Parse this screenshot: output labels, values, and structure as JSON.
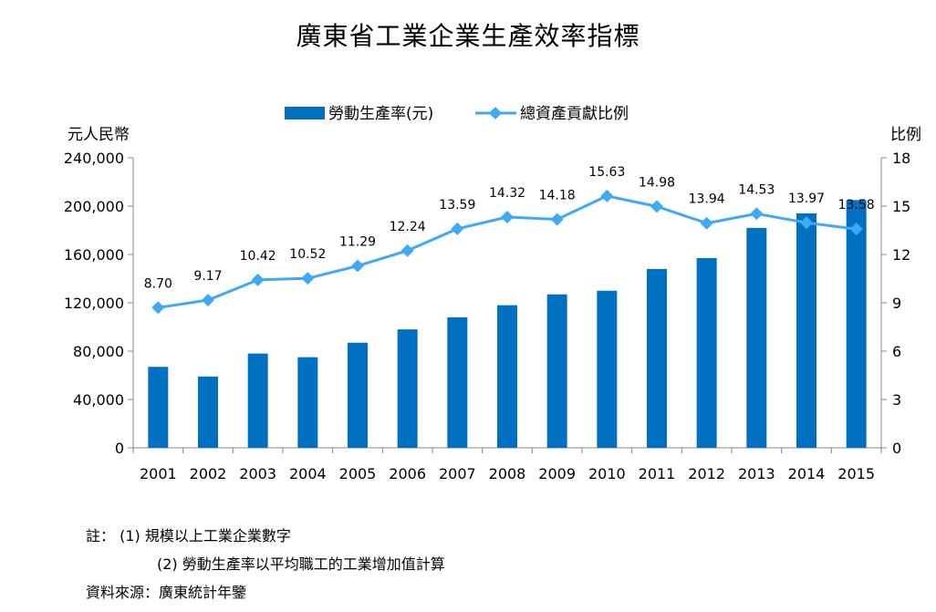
{
  "chart_data": {
    "type": "bar+line",
    "title": "廣東省工業企業生產效率指標",
    "categories": [
      "2001",
      "2002",
      "2003",
      "2004",
      "2005",
      "2006",
      "2007",
      "2008",
      "2009",
      "2010",
      "2011",
      "2012",
      "2013",
      "2014",
      "2015"
    ],
    "series": [
      {
        "name": "勞動生產率(元)",
        "type": "bar",
        "axis": "left",
        "color": "#0070C0",
        "values": [
          67000,
          59000,
          78000,
          75000,
          87000,
          98000,
          108000,
          118000,
          127000,
          130000,
          148000,
          157000,
          182000,
          194000,
          205000
        ]
      },
      {
        "name": "總資產貢獻比例",
        "type": "line",
        "axis": "right",
        "color": "#3FA9F5",
        "marker": "diamond",
        "values": [
          8.7,
          9.17,
          10.42,
          10.52,
          11.29,
          12.24,
          13.59,
          14.32,
          14.18,
          15.63,
          14.98,
          13.94,
          14.53,
          13.97,
          13.58
        ],
        "labels": [
          "8.70",
          "9.17",
          "10.42",
          "10.52",
          "11.29",
          "12.24",
          "13.59",
          "14.32",
          "14.18",
          "15.63",
          "14.98",
          "13.94",
          "14.53",
          "13.97",
          "13.58"
        ]
      }
    ],
    "y_left": {
      "label": "元人民幣",
      "ylim": [
        0,
        240000
      ],
      "ticks": [
        0,
        40000,
        80000,
        120000,
        160000,
        200000,
        240000
      ],
      "tick_labels": [
        "0",
        "40,000",
        "80,000",
        "120,000",
        "160,000",
        "200,000",
        "240,000"
      ]
    },
    "y_right": {
      "label": "比例",
      "ylim": [
        0,
        18
      ],
      "ticks": [
        0,
        3,
        6,
        9,
        12,
        15,
        18
      ],
      "tick_labels": [
        "0",
        "3",
        "6",
        "9",
        "12",
        "15",
        "18"
      ]
    },
    "legend_position": "top-center",
    "grid": false
  },
  "notes": {
    "note_label": "註：",
    "note1": "(1) 規模以上工業企業數字",
    "note2": "(2) 勞動生產率以平均職工的工業增加值計算",
    "source": "資料來源：廣東統計年鑒"
  }
}
